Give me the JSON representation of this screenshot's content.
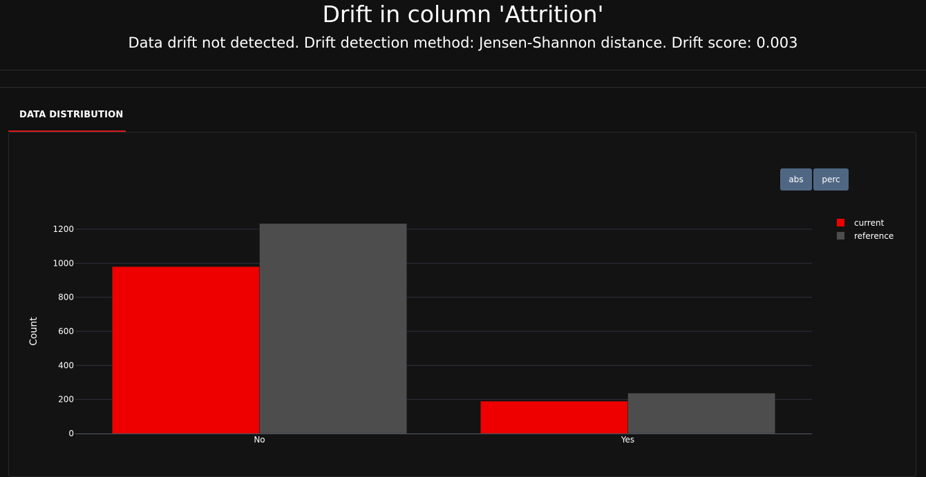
{
  "header": {
    "title": "Drift in column 'Attrition'",
    "subtitle": "Data drift not detected. Drift detection method: Jensen-Shannon distance. Drift score: 0.003"
  },
  "tabs": [
    {
      "label": "DATA DISTRIBUTION",
      "active": true
    }
  ],
  "controls": {
    "abs_label": "abs",
    "perc_label": "perc"
  },
  "colors": {
    "current": "#ee0000",
    "reference": "#4d4d4d",
    "button": "#506784",
    "tab_accent": "#d81b1b"
  },
  "chart_data": {
    "type": "bar",
    "categories": [
      "No",
      "Yes"
    ],
    "series": [
      {
        "name": "current",
        "values": [
          980,
          190
        ]
      },
      {
        "name": "reference",
        "values": [
          1233,
          237
        ]
      }
    ],
    "title": "",
    "xlabel": "",
    "ylabel": "Count",
    "ylim": [
      0,
      1300
    ],
    "yticks": [
      0,
      200,
      400,
      600,
      800,
      1000,
      1200
    ],
    "grid": true,
    "legend_position": "right"
  }
}
